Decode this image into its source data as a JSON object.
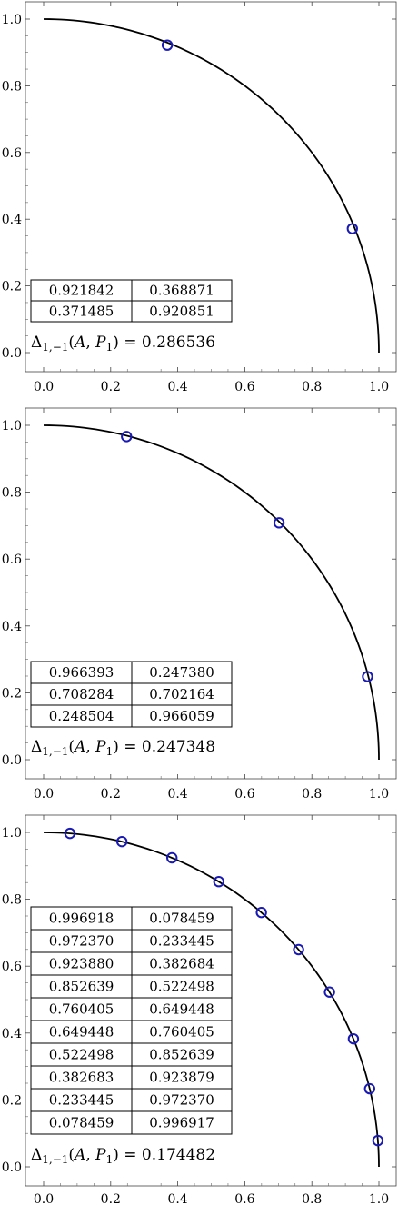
{
  "chart_data": [
    {
      "type": "scatter",
      "curve": "quarter unit circle",
      "xlim": [
        0.0,
        1.0
      ],
      "ylim": [
        0.0,
        1.0
      ],
      "x_ticks": [
        "0.0",
        "0.2",
        "0.4",
        "0.6",
        "0.8",
        "1.0"
      ],
      "y_ticks": [
        "0.0",
        "0.2",
        "0.4",
        "0.6",
        "0.8",
        "1.0"
      ],
      "points": [
        {
          "x": 0.368871,
          "y": 0.921842
        },
        {
          "x": 0.920851,
          "y": 0.371485
        }
      ],
      "table": [
        [
          "0.921842",
          "0.368871"
        ],
        [
          "0.371485",
          "0.920851"
        ]
      ],
      "delta_label": "Δ1,−1(A, P1) = ",
      "delta_value": "0.286536",
      "marker_color": "#1a1ab4",
      "curve_color": "#000000"
    },
    {
      "type": "scatter",
      "curve": "quarter unit circle",
      "xlim": [
        0.0,
        1.0
      ],
      "ylim": [
        0.0,
        1.0
      ],
      "x_ticks": [
        "0.0",
        "0.2",
        "0.4",
        "0.6",
        "0.8",
        "1.0"
      ],
      "y_ticks": [
        "0.0",
        "0.2",
        "0.4",
        "0.6",
        "0.8",
        "1.0"
      ],
      "points": [
        {
          "x": 0.24738,
          "y": 0.966393
        },
        {
          "x": 0.702164,
          "y": 0.708284
        },
        {
          "x": 0.966059,
          "y": 0.248504
        }
      ],
      "table": [
        [
          "0.966393",
          "0.247380"
        ],
        [
          "0.708284",
          "0.702164"
        ],
        [
          "0.248504",
          "0.966059"
        ]
      ],
      "delta_label": "Δ1,−1(A, P1) = ",
      "delta_value": "0.247348",
      "marker_color": "#1a1ab4",
      "curve_color": "#000000"
    },
    {
      "type": "scatter",
      "curve": "quarter unit circle",
      "xlim": [
        0.0,
        1.0
      ],
      "ylim": [
        0.0,
        1.0
      ],
      "x_ticks": [
        "0.0",
        "0.2",
        "0.4",
        "0.6",
        "0.8",
        "1.0"
      ],
      "y_ticks": [
        "0.0",
        "0.2",
        "0.4",
        "0.6",
        "0.8",
        "1.0"
      ],
      "points": [
        {
          "x": 0.078459,
          "y": 0.996918
        },
        {
          "x": 0.233445,
          "y": 0.97237
        },
        {
          "x": 0.382684,
          "y": 0.92388
        },
        {
          "x": 0.522498,
          "y": 0.852639
        },
        {
          "x": 0.649448,
          "y": 0.760405
        },
        {
          "x": 0.760405,
          "y": 0.649448
        },
        {
          "x": 0.852639,
          "y": 0.522498
        },
        {
          "x": 0.923879,
          "y": 0.382683
        },
        {
          "x": 0.97237,
          "y": 0.233445
        },
        {
          "x": 0.996917,
          "y": 0.078459
        }
      ],
      "table": [
        [
          "0.996918",
          "0.078459"
        ],
        [
          "0.972370",
          "0.233445"
        ],
        [
          "0.923880",
          "0.382684"
        ],
        [
          "0.852639",
          "0.522498"
        ],
        [
          "0.760405",
          "0.649448"
        ],
        [
          "0.649448",
          "0.760405"
        ],
        [
          "0.522498",
          "0.852639"
        ],
        [
          "0.382683",
          "0.923879"
        ],
        [
          "0.233445",
          "0.972370"
        ],
        [
          "0.078459",
          "0.996917"
        ]
      ],
      "delta_label": "Δ1,−1(A, P1) = ",
      "delta_value": "0.174482",
      "marker_color": "#1a1ab4",
      "curve_color": "#000000"
    }
  ]
}
